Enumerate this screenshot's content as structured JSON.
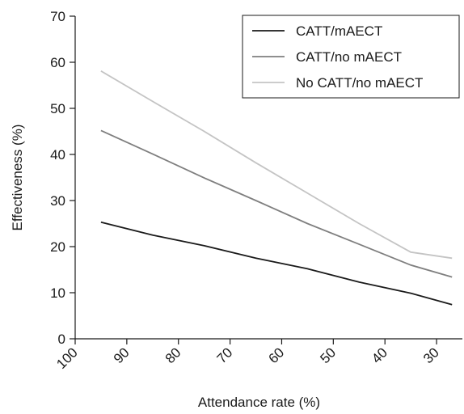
{
  "chart_data": {
    "type": "line",
    "xlabel": "Attendance rate (%)",
    "ylabel": "Effectiveness (%)",
    "x_ticks": [
      100,
      90,
      80,
      70,
      60,
      50,
      40,
      30
    ],
    "y_ticks": [
      0,
      10,
      20,
      30,
      40,
      50,
      60,
      70
    ],
    "xlim": [
      100,
      25
    ],
    "ylim": [
      0,
      70
    ],
    "x_reversed": true,
    "grid": false,
    "legend_position": "top-right",
    "series": [
      {
        "name": "CATT/mAECT",
        "color": "#1a1a1a",
        "x": [
          95,
          85,
          75,
          65,
          55,
          45,
          35,
          27
        ],
        "y": [
          25.3,
          22.5,
          20.2,
          17.5,
          15.2,
          12.3,
          9.9,
          7.4
        ]
      },
      {
        "name": "CATT/no mAECT",
        "color": "#7f7f7f",
        "x": [
          95,
          85,
          75,
          65,
          55,
          45,
          35,
          27
        ],
        "y": [
          45.2,
          40.1,
          34.9,
          30.0,
          25.0,
          20.5,
          16.0,
          13.4
        ]
      },
      {
        "name": "No CATT/no mAECT",
        "color": "#c4c4c4",
        "x": [
          95,
          85,
          75,
          65,
          55,
          45,
          35,
          27
        ],
        "y": [
          58.1,
          51.5,
          45.0,
          38.2,
          31.6,
          25.0,
          18.8,
          17.5
        ]
      }
    ]
  }
}
